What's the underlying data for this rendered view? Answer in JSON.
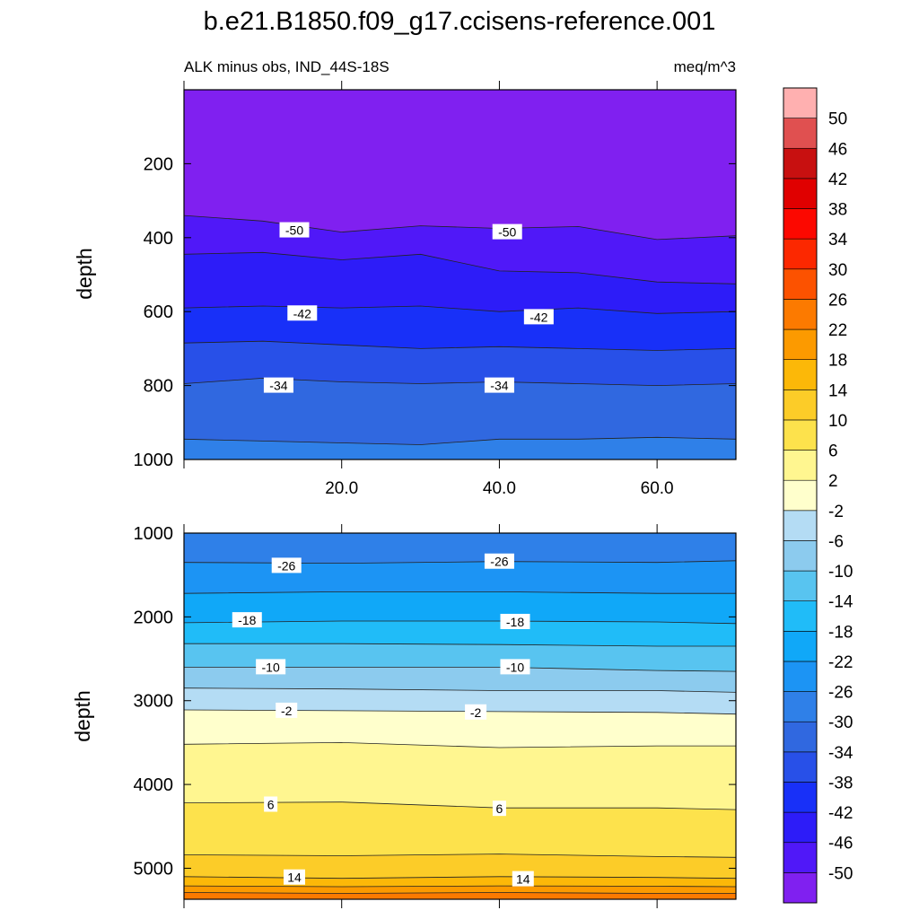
{
  "title": "b.e21.B1850.f09_g17.ccisens-reference.001",
  "colors": {
    "levels": [
      "#8020f0",
      "#5018f8",
      "#2d1cf8",
      "#1830f8",
      "#2850e8",
      "#3068e0",
      "#2f80e8",
      "#1c94f4",
      "#10a8f8",
      "#20bcf8",
      "#58c4f0",
      "#8ccbee",
      "#b4dcf4",
      "#ffffcc",
      "#fff690",
      "#fde24c",
      "#fccc28",
      "#fcb808",
      "#fc9a00",
      "#fc7a00",
      "#fc5200",
      "#fc2800",
      "#fc0800",
      "#e00000",
      "#c81010",
      "#e05050",
      "#ffb0b0"
    ]
  },
  "chart_data": [
    {
      "type": "contour",
      "panel": "upper",
      "subtitle_left": "ALK minus obs, IND_44S-18S",
      "subtitle_right": "meq/m^3",
      "ylabel": "depth",
      "xlim": [
        0,
        70
      ],
      "ylim": [
        1000,
        0
      ],
      "x_ticks": [
        20,
        40,
        60
      ],
      "x_tick_labels": [
        "20.0",
        "40.0",
        "60.0"
      ],
      "y_ticks": [
        200,
        400,
        600,
        800,
        1000
      ],
      "y_tick_labels": [
        "200",
        "400",
        "600",
        "800",
        "1000"
      ],
      "contours": [
        {
          "level": -50,
          "depth": [
            [
              0,
              340
            ],
            [
              10,
              355
            ],
            [
              20,
              385
            ],
            [
              30,
              368
            ],
            [
              40,
              375
            ],
            [
              50,
              370
            ],
            [
              60,
              405
            ],
            [
              70,
              395
            ]
          ]
        },
        {
          "level": -46,
          "depth": [
            [
              0,
              445
            ],
            [
              10,
              440
            ],
            [
              20,
              460
            ],
            [
              30,
              445
            ],
            [
              40,
              490
            ],
            [
              50,
              495
            ],
            [
              60,
              520
            ],
            [
              70,
              525
            ]
          ]
        },
        {
          "level": -42,
          "depth": [
            [
              0,
              590
            ],
            [
              10,
              585
            ],
            [
              20,
              590
            ],
            [
              30,
              585
            ],
            [
              40,
              600
            ],
            [
              50,
              590
            ],
            [
              60,
              605
            ],
            [
              70,
              600
            ]
          ]
        },
        {
          "level": -38,
          "depth": [
            [
              0,
              685
            ],
            [
              10,
              680
            ],
            [
              20,
              690
            ],
            [
              30,
              700
            ],
            [
              40,
              695
            ],
            [
              50,
              700
            ],
            [
              60,
              705
            ],
            [
              70,
              700
            ]
          ]
        },
        {
          "level": -34,
          "depth": [
            [
              0,
              795
            ],
            [
              10,
              780
            ],
            [
              20,
              790
            ],
            [
              30,
              795
            ],
            [
              40,
              790
            ],
            [
              50,
              795
            ],
            [
              60,
              800
            ],
            [
              70,
              795
            ]
          ]
        },
        {
          "level": -30,
          "depth": [
            [
              0,
              945
            ],
            [
              10,
              950
            ],
            [
              20,
              955
            ],
            [
              30,
              960
            ],
            [
              40,
              945
            ],
            [
              50,
              945
            ],
            [
              60,
              940
            ],
            [
              70,
              945
            ]
          ]
        }
      ],
      "labels": [
        {
          "text": "-50",
          "x": 14,
          "depth": 380
        },
        {
          "text": "-50",
          "x": 41,
          "depth": 385
        },
        {
          "text": "-42",
          "x": 15,
          "depth": 605
        },
        {
          "text": "-42",
          "x": 45,
          "depth": 615
        },
        {
          "text": "-34",
          "x": 12,
          "depth": 800
        },
        {
          "text": "-34",
          "x": 40,
          "depth": 800
        }
      ]
    },
    {
      "type": "contour",
      "panel": "lower",
      "ylabel": "depth",
      "xlim": [
        0,
        70
      ],
      "ylim": [
        5370,
        1000
      ],
      "x_tick_labels": [],
      "y_ticks": [
        1000,
        2000,
        3000,
        4000,
        5000
      ],
      "y_tick_labels": [
        "1000",
        "2000",
        "3000",
        "4000",
        "5000"
      ],
      "contours": [
        {
          "level": -26,
          "depth": [
            [
              0,
              1350
            ],
            [
              20,
              1360
            ],
            [
              40,
              1340
            ],
            [
              60,
              1350
            ],
            [
              70,
              1330
            ]
          ]
        },
        {
          "level": -22,
          "depth": [
            [
              0,
              1720
            ],
            [
              20,
              1700
            ],
            [
              40,
              1700
            ],
            [
              60,
              1720
            ],
            [
              70,
              1720
            ]
          ]
        },
        {
          "level": -18,
          "depth": [
            [
              0,
              2070
            ],
            [
              20,
              2050
            ],
            [
              40,
              2050
            ],
            [
              60,
              2060
            ],
            [
              70,
              2080
            ]
          ]
        },
        {
          "level": -14,
          "depth": [
            [
              0,
              2320
            ],
            [
              20,
              2320
            ],
            [
              40,
              2330
            ],
            [
              60,
              2350
            ],
            [
              70,
              2350
            ]
          ]
        },
        {
          "level": -10,
          "depth": [
            [
              0,
              2600
            ],
            [
              20,
              2600
            ],
            [
              40,
              2600
            ],
            [
              60,
              2640
            ],
            [
              70,
              2650
            ]
          ]
        },
        {
          "level": -6,
          "depth": [
            [
              0,
              2850
            ],
            [
              20,
              2860
            ],
            [
              40,
              2880
            ],
            [
              60,
              2880
            ],
            [
              70,
              2900
            ]
          ]
        },
        {
          "level": -2,
          "depth": [
            [
              0,
              3110
            ],
            [
              20,
              3120
            ],
            [
              40,
              3130
            ],
            [
              60,
              3140
            ],
            [
              70,
              3160
            ]
          ]
        },
        {
          "level": 2,
          "depth": [
            [
              0,
              3520
            ],
            [
              20,
              3500
            ],
            [
              40,
              3560
            ],
            [
              60,
              3540
            ],
            [
              70,
              3540
            ]
          ]
        },
        {
          "level": 6,
          "depth": [
            [
              0,
              4220
            ],
            [
              20,
              4210
            ],
            [
              40,
              4280
            ],
            [
              60,
              4280
            ],
            [
              70,
              4300
            ]
          ]
        },
        {
          "level": 10,
          "depth": [
            [
              0,
              4840
            ],
            [
              20,
              4850
            ],
            [
              40,
              4830
            ],
            [
              60,
              4860
            ],
            [
              70,
              4870
            ]
          ]
        },
        {
          "level": 14,
          "depth": [
            [
              0,
              5100
            ],
            [
              20,
              5120
            ],
            [
              40,
              5100
            ],
            [
              60,
              5110
            ],
            [
              70,
              5120
            ]
          ]
        },
        {
          "level": 18,
          "depth": [
            [
              0,
              5210
            ],
            [
              20,
              5220
            ],
            [
              40,
              5210
            ],
            [
              60,
              5215
            ],
            [
              70,
              5220
            ]
          ]
        },
        {
          "level": 22,
          "depth": [
            [
              0,
              5290
            ],
            [
              20,
              5300
            ],
            [
              40,
              5290
            ],
            [
              60,
              5300
            ],
            [
              70,
              5300
            ]
          ]
        }
      ],
      "labels": [
        {
          "text": "-26",
          "x": 13,
          "depth": 1390
        },
        {
          "text": "-26",
          "x": 40,
          "depth": 1340
        },
        {
          "text": "-18",
          "x": 8,
          "depth": 2040
        },
        {
          "text": "-18",
          "x": 42,
          "depth": 2060
        },
        {
          "text": "-10",
          "x": 11,
          "depth": 2600
        },
        {
          "text": "-10",
          "x": 42,
          "depth": 2600
        },
        {
          "text": "-2",
          "x": 13,
          "depth": 3120
        },
        {
          "text": "-2",
          "x": 37,
          "depth": 3140
        },
        {
          "text": "6",
          "x": 11,
          "depth": 4240
        },
        {
          "text": "6",
          "x": 40,
          "depth": 4290
        },
        {
          "text": "14",
          "x": 14,
          "depth": 5110
        },
        {
          "text": "14",
          "x": 43,
          "depth": 5130
        }
      ]
    },
    {
      "type": "colorbar",
      "orientation": "vertical",
      "levels": [
        50,
        46,
        42,
        38,
        34,
        30,
        26,
        22,
        18,
        14,
        10,
        6,
        2,
        -2,
        -6,
        -10,
        -14,
        -18,
        -22,
        -26,
        -30,
        -34,
        -38,
        -42,
        -46,
        -50
      ],
      "level_labels": [
        "50",
        "46",
        "42",
        "38",
        "34",
        "30",
        "26",
        "22",
        "18",
        "14",
        "10",
        "6",
        "2",
        "-2",
        "-6",
        "-10",
        "-14",
        "-18",
        "-22",
        "-26",
        "-30",
        "-34",
        "-38",
        "-42",
        "-46",
        "-50"
      ]
    }
  ]
}
